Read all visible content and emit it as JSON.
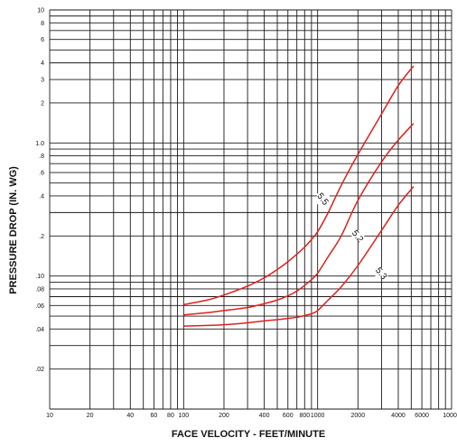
{
  "chart_data": {
    "type": "line",
    "title": "",
    "xlabel": "FACE VELOCITY - FEET/MINUTE",
    "ylabel": "PRESSURE DROP (IN. WG)",
    "x_scale": "log",
    "y_scale": "log",
    "xlim": [
      10,
      10000
    ],
    "ylim": [
      0.01,
      10
    ],
    "grid": true,
    "x_grid_values": [
      10,
      20,
      30,
      40,
      50,
      60,
      70,
      80,
      90,
      100,
      200,
      300,
      400,
      500,
      600,
      700,
      800,
      900,
      1000,
      2000,
      3000,
      4000,
      5000,
      6000,
      7000,
      8000,
      9000,
      10000
    ],
    "y_grid_values": [
      0.01,
      0.02,
      0.03,
      0.04,
      0.05,
      0.06,
      0.07,
      0.08,
      0.09,
      0.1,
      0.2,
      0.3,
      0.4,
      0.5,
      0.6,
      0.7,
      0.8,
      0.9,
      1,
      2,
      3,
      4,
      5,
      6,
      7,
      8,
      9,
      10
    ],
    "x_ticks": [
      {
        "value": 10,
        "label": "10"
      },
      {
        "value": 20,
        "label": "20"
      },
      {
        "value": 40,
        "label": "40"
      },
      {
        "value": 60,
        "label": "60"
      },
      {
        "value": 80,
        "label": "80"
      },
      {
        "value": 100,
        "label": "100"
      },
      {
        "value": 200,
        "label": "200"
      },
      {
        "value": 400,
        "label": "400"
      },
      {
        "value": 600,
        "label": "600"
      },
      {
        "value": 800,
        "label": "800"
      },
      {
        "value": 1000,
        "label": "1000"
      },
      {
        "value": 2000,
        "label": "2000"
      },
      {
        "value": 4000,
        "label": "4000"
      },
      {
        "value": 6000,
        "label": "6000"
      },
      {
        "value": 10000,
        "label": "10000"
      }
    ],
    "y_ticks": [
      {
        "value": 10,
        "label": "10"
      },
      {
        "value": 8,
        "label": "8"
      },
      {
        "value": 6,
        "label": "6"
      },
      {
        "value": 4,
        "label": "4"
      },
      {
        "value": 3,
        "label": "3"
      },
      {
        "value": 2,
        "label": "2"
      },
      {
        "value": 1,
        "label": "1.0"
      },
      {
        "value": 0.8,
        "label": ".8"
      },
      {
        "value": 0.6,
        "label": ".6"
      },
      {
        "value": 0.4,
        "label": ".4"
      },
      {
        "value": 0.2,
        "label": ".2"
      },
      {
        "value": 0.1,
        "label": ".10"
      },
      {
        "value": 0.08,
        "label": ".08"
      },
      {
        "value": 0.06,
        "label": ".06"
      },
      {
        "value": 0.04,
        "label": ".04"
      },
      {
        "value": 0.02,
        "label": ".02"
      }
    ],
    "series": [
      {
        "name": "5.5",
        "color": "#e0201c",
        "label_at": {
          "x": 1100,
          "y": 0.38
        },
        "points": [
          [
            100,
            0.061
          ],
          [
            150,
            0.066
          ],
          [
            200,
            0.072
          ],
          [
            300,
            0.084
          ],
          [
            400,
            0.097
          ],
          [
            500,
            0.112
          ],
          [
            600,
            0.128
          ],
          [
            700,
            0.146
          ],
          [
            800,
            0.165
          ],
          [
            900,
            0.188
          ],
          [
            1000,
            0.215
          ],
          [
            1200,
            0.3
          ],
          [
            1500,
            0.48
          ],
          [
            2000,
            0.82
          ],
          [
            3000,
            1.65
          ],
          [
            4000,
            2.7
          ],
          [
            5200,
            3.8
          ]
        ]
      },
      {
        "name": "5.2",
        "color": "#e0201c",
        "label_at": {
          "x": 2000,
          "y": 0.2
        },
        "points": [
          [
            100,
            0.051
          ],
          [
            150,
            0.053
          ],
          [
            200,
            0.055
          ],
          [
            300,
            0.058
          ],
          [
            400,
            0.062
          ],
          [
            500,
            0.066
          ],
          [
            600,
            0.071
          ],
          [
            700,
            0.077
          ],
          [
            800,
            0.085
          ],
          [
            900,
            0.094
          ],
          [
            1000,
            0.105
          ],
          [
            1200,
            0.14
          ],
          [
            1500,
            0.2
          ],
          [
            2000,
            0.37
          ],
          [
            3000,
            0.72
          ],
          [
            4000,
            1.05
          ],
          [
            5200,
            1.4
          ]
        ]
      },
      {
        "name": "5.3",
        "color": "#e0201c",
        "label_at": {
          "x": 3000,
          "y": 0.105
        },
        "points": [
          [
            100,
            0.042
          ],
          [
            150,
            0.0425
          ],
          [
            200,
            0.043
          ],
          [
            300,
            0.0445
          ],
          [
            400,
            0.046
          ],
          [
            500,
            0.047
          ],
          [
            600,
            0.048
          ],
          [
            700,
            0.049
          ],
          [
            800,
            0.0505
          ],
          [
            900,
            0.052
          ],
          [
            1000,
            0.055
          ],
          [
            1200,
            0.066
          ],
          [
            1500,
            0.083
          ],
          [
            2000,
            0.12
          ],
          [
            3000,
            0.22
          ],
          [
            4000,
            0.34
          ],
          [
            5200,
            0.47
          ]
        ]
      }
    ]
  }
}
